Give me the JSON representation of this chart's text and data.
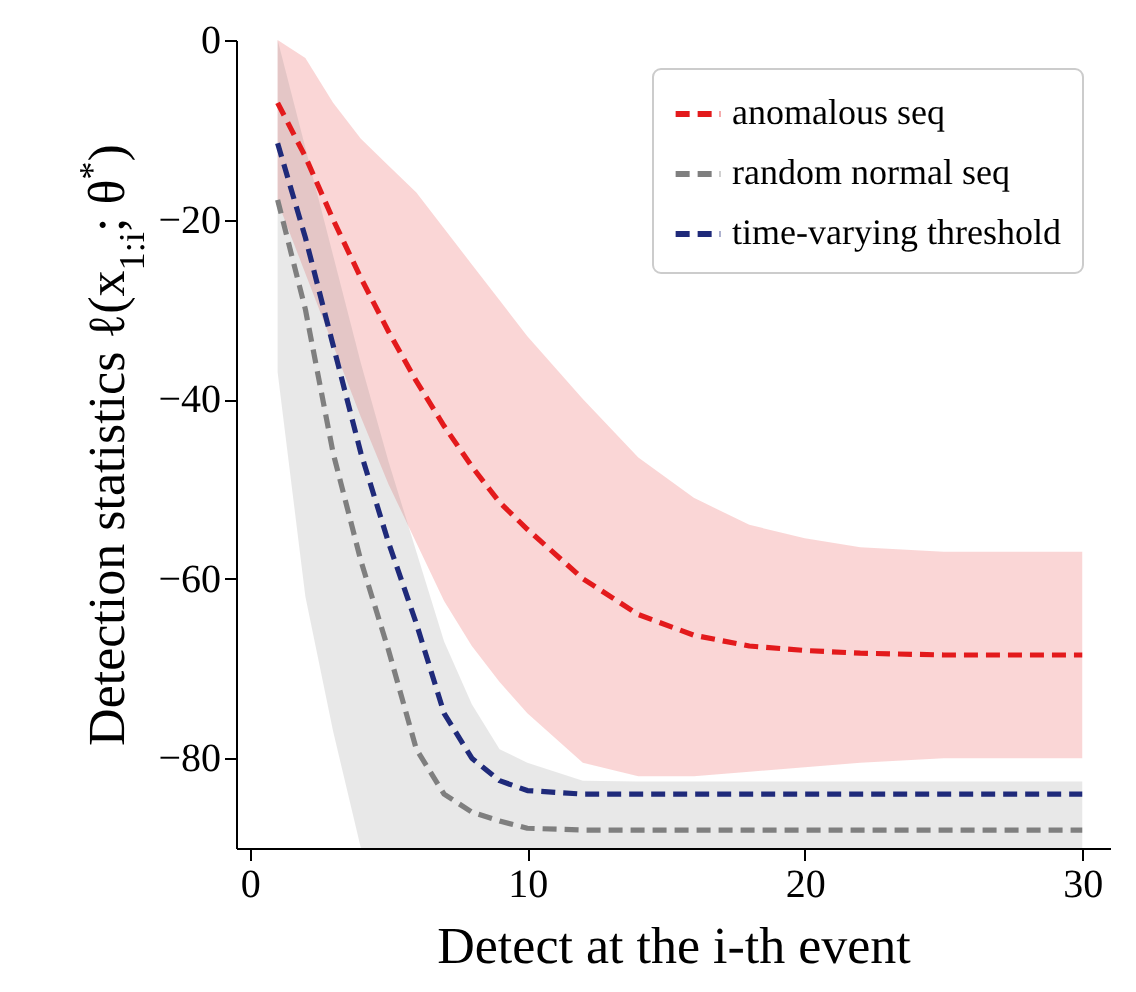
{
  "chart_data": {
    "type": "line",
    "xlabel": "Detect at the i-th event",
    "ylabel": "Detection statistics ℓ(x$_{1:i}$; θ$^{*}$)",
    "x": [
      1,
      2,
      3,
      4,
      5,
      6,
      7,
      8,
      9,
      10,
      12,
      14,
      16,
      18,
      20,
      22,
      25,
      30
    ],
    "series": [
      {
        "name": "anomalous seq",
        "color": "#e31a1c",
        "values": [
          -7,
          -13,
          -20,
          -26.5,
          -32.5,
          -38,
          -43,
          -47.5,
          -51.5,
          -54.5,
          -60,
          -64,
          -66.3,
          -67.5,
          -68,
          -68.3,
          -68.5,
          -68.5
        ],
        "lower": [
          -18,
          -26,
          -34,
          -42,
          -49.5,
          -56,
          -62.5,
          -67.5,
          -71.5,
          -75,
          -80.5,
          -82,
          -82,
          -81.5,
          -81,
          -80.5,
          -80,
          -80
        ],
        "upper": [
          0,
          -2,
          -7,
          -11,
          -14,
          -17,
          -21,
          -25,
          -29,
          -33,
          -40,
          -46.5,
          -51,
          -54,
          -55.5,
          -56.5,
          -57,
          -57
        ]
      },
      {
        "name": "random normal seq",
        "color": "#7f7f7f",
        "values": [
          -17.8,
          -30,
          -46,
          -58,
          -68,
          -79,
          -84,
          -86,
          -87,
          -87.8,
          -88,
          -88,
          -88,
          -88,
          -88,
          -88,
          -88,
          -88
        ],
        "lower": [
          -37,
          -62,
          -77,
          -90,
          -90,
          -90,
          -90,
          -90,
          -90,
          -90,
          -90,
          -90,
          -90,
          -90,
          -90,
          -90,
          -90,
          -90
        ],
        "upper": [
          0,
          -12,
          -24,
          -36,
          -47,
          -57,
          -67,
          -74,
          -79,
          -80.5,
          -82.5,
          -82.6,
          -82.6,
          -82.6,
          -82.6,
          -82.6,
          -82.6,
          -82.6
        ]
      },
      {
        "name": "time-varying threshold",
        "color": "#1f2a7a",
        "values": [
          -11.5,
          -22,
          -34,
          -46,
          -56,
          -65,
          -75,
          -80,
          -82.5,
          -83.6,
          -84,
          -84,
          -84,
          -84,
          -84,
          -84,
          -84,
          -84
        ]
      }
    ],
    "xlim": [
      -0.5,
      31
    ],
    "ylim": [
      -90,
      0
    ],
    "xticks": [
      0,
      10,
      20,
      30
    ],
    "yticks": [
      -80,
      -60,
      -40,
      -20,
      0
    ],
    "legend": "top right",
    "grid": false,
    "line_style": "dashed",
    "marker": "none"
  }
}
